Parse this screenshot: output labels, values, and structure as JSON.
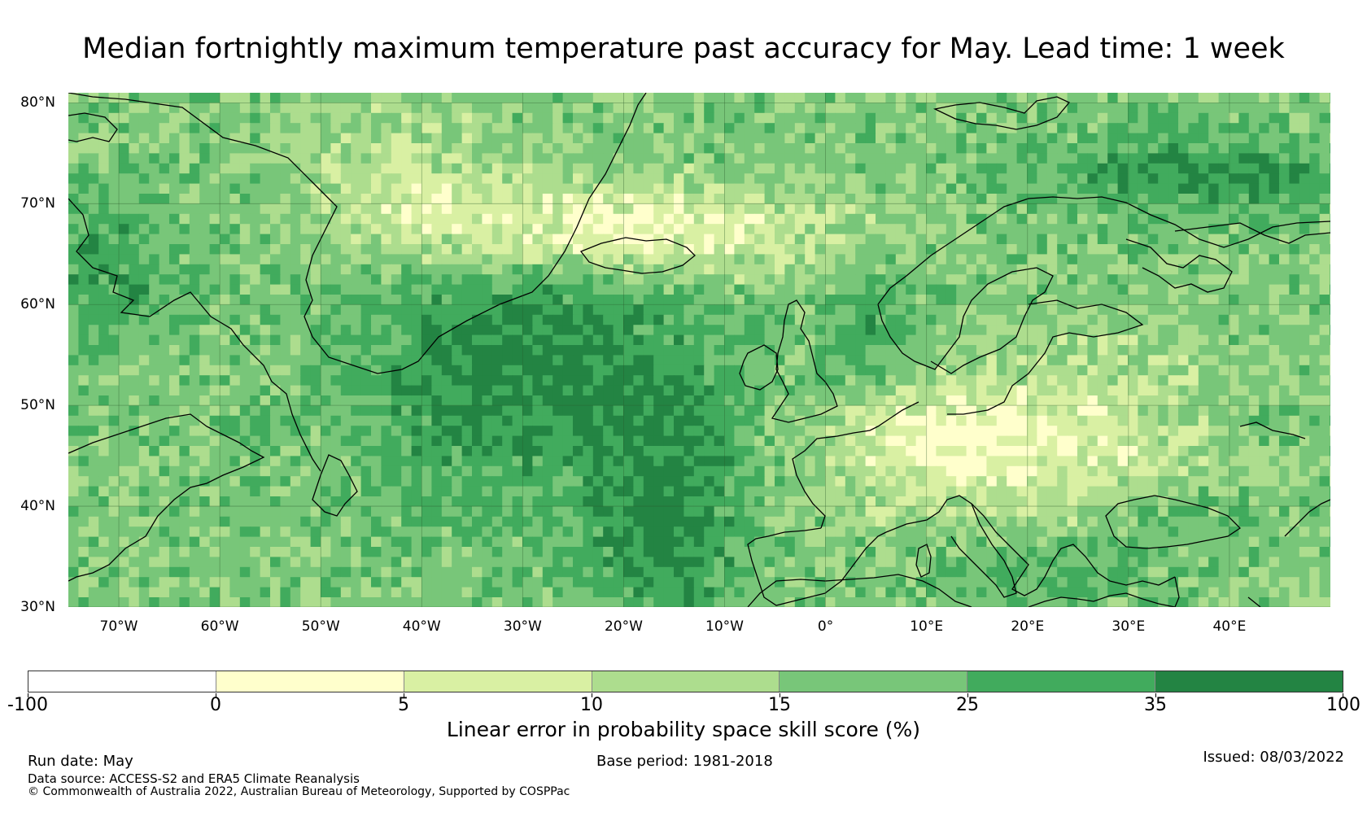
{
  "title": "Median fortnightly maximum temperature past accuracy for May. Lead time: 1 week",
  "map": {
    "region": "North Atlantic and Europe",
    "projection": "equirectangular",
    "lon_range": [
      -75,
      50
    ],
    "lat_range": [
      30,
      81
    ],
    "gridlines": true,
    "lat_labels": [
      "80°N",
      "70°N",
      "60°N",
      "50°N",
      "40°N",
      "30°N"
    ],
    "lat_values": [
      80,
      70,
      60,
      50,
      40,
      30
    ],
    "lon_labels": [
      "70°W",
      "60°W",
      "50°W",
      "40°W",
      "30°W",
      "20°W",
      "10°W",
      "0°",
      "10°E",
      "20°E",
      "30°E",
      "40°E"
    ],
    "lon_values": [
      -70,
      -60,
      -50,
      -40,
      -30,
      -20,
      -10,
      0,
      10,
      20,
      30,
      40
    ],
    "field": "Linear error in probability space skill score",
    "skill_regions": [
      {
        "area": "central North Atlantic",
        "level": "35 to 100"
      },
      {
        "area": "west of Iberia",
        "level": "35 to 100"
      },
      {
        "area": "Labrador and Hudson region",
        "level": "35 to 100"
      },
      {
        "area": "Barents Sea",
        "level": "35 to 100"
      },
      {
        "area": "Black Sea",
        "level": "25 to 35"
      },
      {
        "area": "Mediterranean Sea",
        "level": "25 to 35"
      },
      {
        "area": "Denmark Strait and Greenland Sea",
        "level": "0 to 10"
      },
      {
        "area": "central Europe",
        "level": "0 to 10"
      },
      {
        "area": "eastern Europe",
        "level": "5 to 15"
      }
    ]
  },
  "colorbar": {
    "tick_labels": [
      "-100",
      "0",
      "5",
      "10",
      "15",
      "25",
      "35",
      "100"
    ],
    "colors": [
      "#ffffff",
      "#ffffcc",
      "#d9f0a3",
      "#addd8e",
      "#78c679",
      "#41ab5d",
      "#238443"
    ],
    "title": "Linear error in probability space skill score (%)"
  },
  "footer": {
    "run_date": "Run date: May",
    "base_period": "Base period: 1981-2018",
    "issued": "Issued: 08/03/2022",
    "data_source": "Data source: ACCESS-S2 and ERA5 Climate Reanalysis",
    "copyright": "© Commonwealth of Australia 2022, Australian Bureau of Meteorology, Supported by COSPPac"
  }
}
